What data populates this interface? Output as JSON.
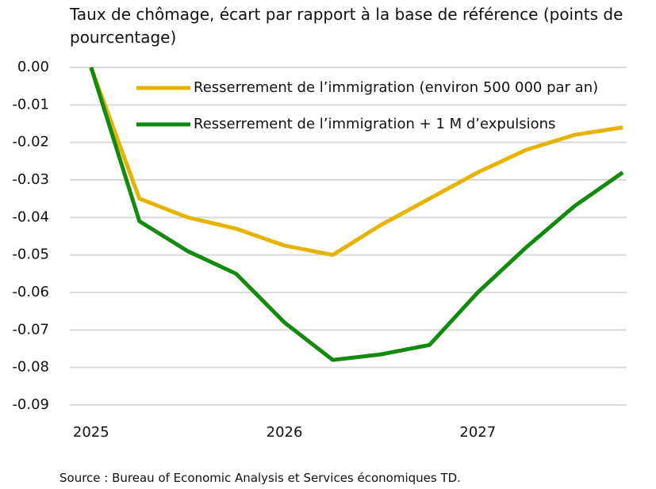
{
  "chart_data": {
    "type": "line",
    "title": "Taux de chômage, écart par rapport à la base de référence (points de pourcentage)",
    "source": "Source : Bureau of Economic Analysis et Services économiques TD.",
    "x": [
      2025,
      2025.25,
      2025.5,
      2025.75,
      2026,
      2026.25,
      2026.5,
      2026.75,
      2027,
      2027.25,
      2027.5,
      2027.75
    ],
    "series": [
      {
        "name": "Resserrement de l’immigration (environ 500 000 par an)",
        "color": "#e6b400",
        "values": [
          0,
          -0.035,
          -0.04,
          -0.043,
          -0.0475,
          -0.05,
          -0.042,
          -0.035,
          -0.028,
          -0.022,
          -0.018,
          -0.016
        ]
      },
      {
        "name": "Resserrement de l’immigration + 1 M d’expulsions",
        "color": "#128a0e",
        "values": [
          0,
          -0.041,
          -0.049,
          -0.055,
          -0.068,
          -0.078,
          -0.0765,
          -0.074,
          -0.06,
          -0.048,
          -0.037,
          -0.028
        ]
      }
    ],
    "xlim": [
      2024.89,
      2027.77
    ],
    "xticks": [
      2025,
      2026,
      2027
    ],
    "ylim": [
      -0.09,
      0
    ],
    "yticks": [
      {
        "value": 0,
        "label": "0.00"
      },
      {
        "value": -0.01,
        "label": "-0.01"
      },
      {
        "value": -0.02,
        "label": "-0.02"
      },
      {
        "value": -0.03,
        "label": "-0.03"
      },
      {
        "value": -0.04,
        "label": "-0.04"
      },
      {
        "value": -0.05,
        "label": "-0.05"
      },
      {
        "value": -0.06,
        "label": "-0.06"
      },
      {
        "value": -0.07,
        "label": "-0.07"
      },
      {
        "value": -0.08,
        "label": "-0.08"
      },
      {
        "value": -0.09,
        "label": "-0.09"
      }
    ],
    "grid": true,
    "legend": "top"
  }
}
